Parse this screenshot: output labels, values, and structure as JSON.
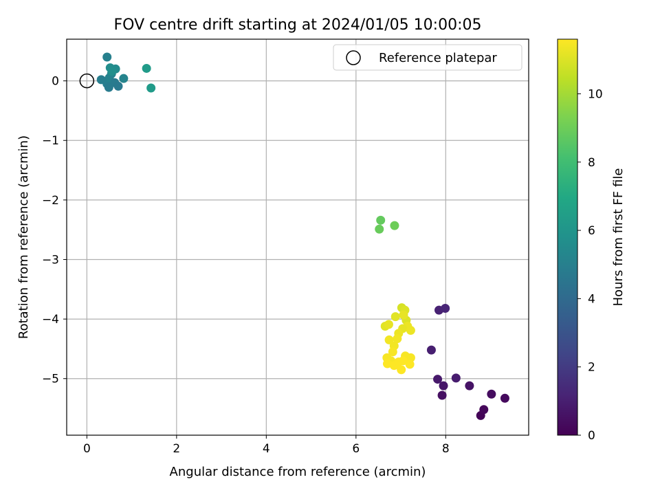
{
  "chart_data": {
    "type": "scatter",
    "title": "FOV centre drift starting at 2024/01/05 10:00:05",
    "xlabel": "Angular distance from reference (arcmin)",
    "ylabel": "Rotation from reference (arcmin)",
    "xlim": [
      -0.45,
      9.85
    ],
    "ylim": [
      -5.95,
      0.7
    ],
    "xticks": [
      0,
      2,
      4,
      6,
      8
    ],
    "yticks": [
      0,
      -1,
      -2,
      -3,
      -4,
      -5
    ],
    "grid": true,
    "legend": {
      "position": "top-right",
      "entries": [
        "Reference platepar"
      ]
    },
    "reference_point": {
      "x": 0,
      "y": 0
    },
    "colorbar": {
      "label": "Hours from first FF file",
      "range": [
        0,
        11.6
      ],
      "ticks": [
        0,
        2,
        4,
        6,
        8,
        10
      ],
      "colormap": "viridis"
    },
    "points": [
      {
        "x": 8.78,
        "y": -5.62,
        "c": 0.1
      },
      {
        "x": 8.85,
        "y": -5.52,
        "c": 0.2
      },
      {
        "x": 9.32,
        "y": -5.33,
        "c": 0.3
      },
      {
        "x": 9.02,
        "y": -5.26,
        "c": 0.4
      },
      {
        "x": 7.92,
        "y": -5.28,
        "c": 0.5
      },
      {
        "x": 8.53,
        "y": -5.12,
        "c": 0.6
      },
      {
        "x": 7.95,
        "y": -5.12,
        "c": 0.7
      },
      {
        "x": 7.82,
        "y": -5.01,
        "c": 0.8
      },
      {
        "x": 8.23,
        "y": -4.99,
        "c": 0.9
      },
      {
        "x": 7.68,
        "y": -4.52,
        "c": 1.0
      },
      {
        "x": 7.85,
        "y": -3.85,
        "c": 1.1
      },
      {
        "x": 7.99,
        "y": -3.82,
        "c": 1.2
      },
      {
        "x": 0.45,
        "y": 0.4,
        "c": 5.0
      },
      {
        "x": 0.55,
        "y": 0.12,
        "c": 5.0
      },
      {
        "x": 0.45,
        "y": -0.05,
        "c": 4.9
      },
      {
        "x": 0.5,
        "y": 0.05,
        "c": 5.1
      },
      {
        "x": 0.62,
        "y": -0.03,
        "c": 4.8
      },
      {
        "x": 0.32,
        "y": 0.02,
        "c": 4.9
      },
      {
        "x": 0.7,
        "y": -0.09,
        "c": 4.7
      },
      {
        "x": 0.49,
        "y": -0.11,
        "c": 4.8
      },
      {
        "x": 0.82,
        "y": 0.04,
        "c": 5.2
      },
      {
        "x": 0.52,
        "y": 0.22,
        "c": 5.6
      },
      {
        "x": 0.64,
        "y": 0.2,
        "c": 5.5
      },
      {
        "x": 0.56,
        "y": 0.16,
        "c": 5.7
      },
      {
        "x": 1.33,
        "y": 0.21,
        "c": 6.3
      },
      {
        "x": 1.43,
        "y": -0.12,
        "c": 6.3
      },
      {
        "x": 6.55,
        "y": -2.34,
        "c": 8.8
      },
      {
        "x": 6.52,
        "y": -2.49,
        "c": 8.9
      },
      {
        "x": 6.86,
        "y": -2.43,
        "c": 9.0
      },
      {
        "x": 7.02,
        "y": -3.81,
        "c": 10.9
      },
      {
        "x": 7.09,
        "y": -3.85,
        "c": 11.0
      },
      {
        "x": 6.88,
        "y": -3.96,
        "c": 11.1
      },
      {
        "x": 7.12,
        "y": -4.02,
        "c": 11.0
      },
      {
        "x": 7.06,
        "y": -3.93,
        "c": 11.2
      },
      {
        "x": 6.65,
        "y": -4.12,
        "c": 11.1
      },
      {
        "x": 6.73,
        "y": -4.09,
        "c": 11.2
      },
      {
        "x": 7.15,
        "y": -4.12,
        "c": 11.3
      },
      {
        "x": 7.04,
        "y": -4.16,
        "c": 11.2
      },
      {
        "x": 7.22,
        "y": -4.19,
        "c": 11.3
      },
      {
        "x": 6.95,
        "y": -4.24,
        "c": 11.3
      },
      {
        "x": 6.92,
        "y": -4.33,
        "c": 11.4
      },
      {
        "x": 6.74,
        "y": -4.35,
        "c": 11.4
      },
      {
        "x": 6.85,
        "y": -4.45,
        "c": 11.4
      },
      {
        "x": 6.82,
        "y": -4.55,
        "c": 11.5
      },
      {
        "x": 6.69,
        "y": -4.65,
        "c": 11.5
      },
      {
        "x": 7.1,
        "y": -4.62,
        "c": 11.5
      },
      {
        "x": 7.22,
        "y": -4.65,
        "c": 11.5
      },
      {
        "x": 6.78,
        "y": -4.7,
        "c": 11.5
      },
      {
        "x": 7.05,
        "y": -4.7,
        "c": 11.6
      },
      {
        "x": 6.7,
        "y": -4.75,
        "c": 11.6
      },
      {
        "x": 6.85,
        "y": -4.78,
        "c": 11.6
      },
      {
        "x": 7.2,
        "y": -4.76,
        "c": 11.6
      },
      {
        "x": 6.95,
        "y": -4.72,
        "c": 11.6
      },
      {
        "x": 7.01,
        "y": -4.85,
        "c": 11.6
      }
    ]
  }
}
